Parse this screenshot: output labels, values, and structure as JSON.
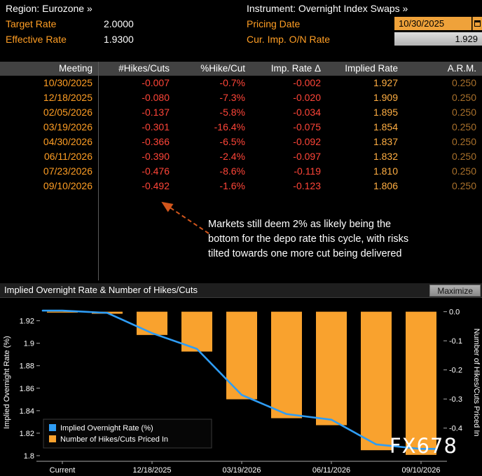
{
  "header": {
    "region_label": "Region:",
    "region_value": "Eurozone »",
    "instrument_label": "Instrument:",
    "instrument_value": "Overnight Index Swaps »",
    "target_rate_label": "Target Rate",
    "target_rate_value": "2.0000",
    "effective_rate_label": "Effective Rate",
    "effective_rate_value": "1.9300",
    "pricing_date_label": "Pricing Date",
    "pricing_date_value": "10/30/2025",
    "cur_imp_label": "Cur. Imp. O/N Rate",
    "cur_imp_value": "1.929"
  },
  "table": {
    "columns": [
      "Meeting",
      "#Hikes/Cuts",
      "%Hike/Cut",
      "Imp. Rate Δ",
      "Implied Rate",
      "A.R.M."
    ],
    "rows": [
      {
        "meeting": "10/30/2025",
        "hikes_cuts": "-0.007",
        "pct": "-0.7%",
        "imp_delta": "-0.002",
        "implied": "1.927",
        "arm": "0.250"
      },
      {
        "meeting": "12/18/2025",
        "hikes_cuts": "-0.080",
        "pct": "-7.3%",
        "imp_delta": "-0.020",
        "implied": "1.909",
        "arm": "0.250"
      },
      {
        "meeting": "02/05/2026",
        "hikes_cuts": "-0.137",
        "pct": "-5.8%",
        "imp_delta": "-0.034",
        "implied": "1.895",
        "arm": "0.250"
      },
      {
        "meeting": "03/19/2026",
        "hikes_cuts": "-0.301",
        "pct": "-16.4%",
        "imp_delta": "-0.075",
        "implied": "1.854",
        "arm": "0.250"
      },
      {
        "meeting": "04/30/2026",
        "hikes_cuts": "-0.366",
        "pct": "-6.5%",
        "imp_delta": "-0.092",
        "implied": "1.837",
        "arm": "0.250"
      },
      {
        "meeting": "06/11/2026",
        "hikes_cuts": "-0.390",
        "pct": "-2.4%",
        "imp_delta": "-0.097",
        "implied": "1.832",
        "arm": "0.250"
      },
      {
        "meeting": "07/23/2026",
        "hikes_cuts": "-0.476",
        "pct": "-8.6%",
        "imp_delta": "-0.119",
        "implied": "1.810",
        "arm": "0.250"
      },
      {
        "meeting": "09/10/2026",
        "hikes_cuts": "-0.492",
        "pct": "-1.6%",
        "imp_delta": "-0.123",
        "implied": "1.806",
        "arm": "0.250"
      }
    ]
  },
  "annotation": {
    "lines": [
      "Markets still deem 2% as likely being the",
      "bottom for the depo rate this cycle, with risks",
      "tilted towards one more cut being delivered"
    ]
  },
  "chart": {
    "title": "Implied Overnight Rate & Number of Hikes/Cuts",
    "maximize_label": "Maximize",
    "watermark": "FX678"
  },
  "colors": {
    "amber_label": "#ff9e24",
    "negative_red": "#ff4538",
    "implied_amber": "#ffae42",
    "arm_brown": "#a8702b",
    "bar_orange": "#f9a22e",
    "line_blue": "#2f9df5",
    "arrow_orange": "#d2561c",
    "field_amber": "#efa23a"
  },
  "chart_data": {
    "type": "combo",
    "categories": [
      "Current",
      "10/30/2025",
      "12/18/2025",
      "02/05/2026",
      "03/19/2026",
      "04/30/2026",
      "06/11/2026",
      "07/23/2026",
      "09/10/2026"
    ],
    "series": [
      {
        "name": "Implied Overnight Rate (%)",
        "type": "line",
        "axis": "left",
        "color": "#2f9df5",
        "values": [
          1.929,
          1.927,
          1.909,
          1.895,
          1.854,
          1.837,
          1.832,
          1.81,
          1.806
        ]
      },
      {
        "name": "Number of Hikes/Cuts Priced In",
        "type": "bar",
        "axis": "right",
        "color": "#f9a22e",
        "values": [
          0,
          -0.007,
          -0.08,
          -0.137,
          -0.301,
          -0.366,
          -0.39,
          -0.476,
          -0.492
        ]
      }
    ],
    "left_axis": {
      "label": "Implied Overnight Rate (%)",
      "ticks": [
        "1.92",
        "1.9",
        "1.88",
        "1.86",
        "1.84",
        "1.82",
        "1.8"
      ],
      "tick_values": [
        1.92,
        1.9,
        1.88,
        1.86,
        1.84,
        1.82,
        1.8
      ],
      "range": [
        1.795,
        1.9353
      ]
    },
    "right_axis": {
      "label": "Number of Hikes/Cuts Priced In",
      "ticks": [
        "0.0",
        "-0.1",
        "-0.2",
        "-0.3",
        "-0.4"
      ],
      "tick_values": [
        0,
        -0.1,
        -0.2,
        -0.3,
        -0.4
      ],
      "range": [
        -0.514,
        0.028
      ]
    },
    "x_tick_indices": [
      0,
      2,
      4,
      6,
      8
    ],
    "x_tick_labels": [
      "Current",
      "12/18/2025",
      "03/19/2026",
      "06/11/2026",
      "09/10/2026"
    ],
    "legend_position": "bottom-left",
    "grid": false
  }
}
